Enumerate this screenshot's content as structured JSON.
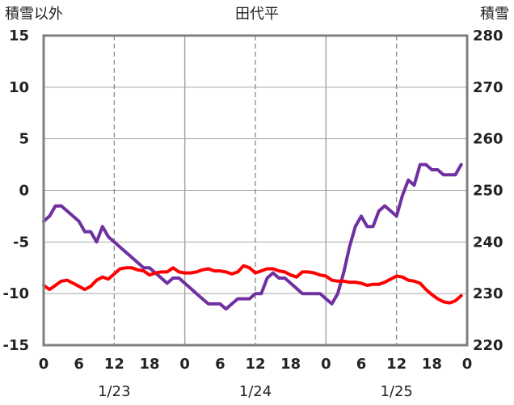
{
  "chart_data": {
    "type": "line",
    "title": "田代平",
    "ylabel_left": "積雪以外",
    "ylabel_right": "積雪",
    "ylim_left": [
      -15,
      15
    ],
    "ylim_right": [
      220,
      280
    ],
    "yticks_left": [
      "15",
      "10",
      "5",
      "0",
      "-5",
      "-10",
      "-15"
    ],
    "yticks_right": [
      "280",
      "270",
      "260",
      "250",
      "240",
      "230",
      "220"
    ],
    "xlim_hours": [
      0,
      72
    ],
    "xticks": [
      "0",
      "6",
      "12",
      "18",
      "0",
      "6",
      "12",
      "18",
      "0",
      "6",
      "12",
      "18",
      "0"
    ],
    "date_labels": [
      "1/23",
      "1/24",
      "1/25"
    ],
    "grid": true,
    "series": [
      {
        "color": "#7030A0",
        "axis": "left",
        "x": [
          0,
          1,
          2,
          3,
          4,
          5,
          6,
          7,
          8,
          9,
          10,
          11,
          12,
          13,
          14,
          15,
          16,
          17,
          18,
          19,
          20,
          21,
          22,
          23,
          24,
          25,
          26,
          27,
          28,
          29,
          30,
          31,
          32,
          33,
          34,
          35,
          36,
          37,
          38,
          39,
          40,
          41,
          42,
          43,
          44,
          45,
          46,
          47,
          48,
          49,
          50,
          51,
          52,
          53,
          54,
          55,
          56,
          57,
          58,
          59,
          60,
          61,
          62,
          63,
          64,
          65,
          66,
          67,
          68,
          69,
          70,
          71
        ],
        "y": [
          -3,
          -2.5,
          -1.5,
          -1.5,
          -2,
          -2.5,
          -3,
          -4,
          -4,
          -5,
          -3.5,
          -4.5,
          -5,
          -5.5,
          -6,
          -6.5,
          -7,
          -7.5,
          -7.5,
          -8,
          -8.5,
          -9,
          -8.5,
          -8.5,
          -9,
          -9.5,
          -10,
          -10.5,
          -11,
          -11,
          -11,
          -11.5,
          -11,
          -10.5,
          -10.5,
          -10.5,
          -10,
          -10,
          -8.5,
          -8,
          -8.5,
          -8.5,
          -9,
          -9.5,
          -10,
          -10,
          -10,
          -10,
          -10.5,
          -11,
          -10,
          -8,
          -5.5,
          -3.5,
          -2.5,
          -3.5,
          -3.5,
          -2,
          -1.5,
          -2,
          -2.5,
          -0.5,
          1,
          0.5,
          2.5,
          2.5,
          2,
          2,
          1.5,
          1.5,
          1.5,
          2.5
        ]
      },
      {
        "color": "#FF0000",
        "axis": "left",
        "x": [
          0,
          1,
          2,
          3,
          4,
          5,
          6,
          7,
          8,
          9,
          10,
          11,
          12,
          13,
          14,
          15,
          16,
          17,
          18,
          19,
          20,
          21,
          22,
          23,
          24,
          25,
          26,
          27,
          28,
          29,
          30,
          31,
          32,
          33,
          34,
          35,
          36,
          37,
          38,
          39,
          40,
          41,
          42,
          43,
          44,
          45,
          46,
          47,
          48,
          49,
          50,
          51,
          52,
          53,
          54,
          55,
          56,
          57,
          58,
          59,
          60,
          61,
          62,
          63,
          64,
          65,
          66,
          67,
          68,
          69,
          70,
          71
        ],
        "y": [
          -9.2,
          -9.6,
          -9.2,
          -8.8,
          -8.7,
          -9,
          -9.3,
          -9.6,
          -9.3,
          -8.7,
          -8.4,
          -8.6,
          -8.1,
          -7.6,
          -7.5,
          -7.5,
          -7.7,
          -7.8,
          -8.2,
          -8,
          -7.9,
          -7.9,
          -7.5,
          -7.9,
          -8,
          -8,
          -7.9,
          -7.7,
          -7.6,
          -7.8,
          -7.8,
          -7.9,
          -8.1,
          -7.9,
          -7.3,
          -7.5,
          -8,
          -7.8,
          -7.6,
          -7.6,
          -7.8,
          -7.9,
          -8.2,
          -8.4,
          -7.9,
          -7.9,
          -8,
          -8.2,
          -8.3,
          -8.7,
          -8.8,
          -8.8,
          -8.9,
          -8.9,
          -9,
          -9.2,
          -9.1,
          -9.1,
          -8.9,
          -8.6,
          -8.3,
          -8.4,
          -8.7,
          -8.8,
          -9,
          -9.6,
          -10.1,
          -10.5,
          -10.8,
          -10.9,
          -10.7,
          -10.2
        ]
      }
    ]
  }
}
